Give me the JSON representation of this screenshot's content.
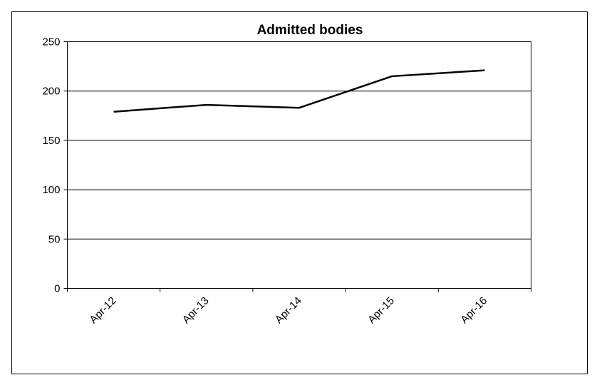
{
  "chart_data": {
    "type": "line",
    "title": "Admitted bodies",
    "categories": [
      "Apr-12",
      "Apr-13",
      "Apr-14",
      "Apr-15",
      "Apr-16"
    ],
    "series": [
      {
        "values": [
          179,
          186,
          183,
          215,
          221
        ]
      }
    ],
    "ylim": [
      0,
      250
    ],
    "yticks": [
      0,
      50,
      100,
      150,
      200,
      250
    ],
    "ytick_labels": [
      "0",
      "50",
      "100",
      "150",
      "200",
      "250"
    ],
    "xlabel": "",
    "ylabel": "",
    "grid": true,
    "legend": "none",
    "line_color": "#000000",
    "grid_color": "#000000"
  }
}
